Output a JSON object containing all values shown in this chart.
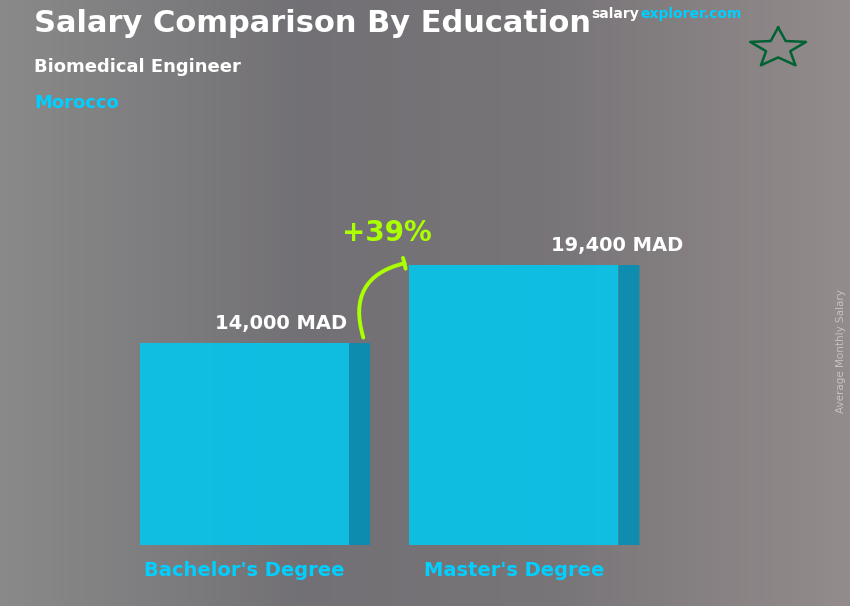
{
  "title": "Salary Comparison By Education",
  "subtitle": "Biomedical Engineer",
  "country": "Morocco",
  "site_salary": "salary",
  "site_explorer": "explorer.com",
  "categories": [
    "Bachelor's Degree",
    "Master's Degree"
  ],
  "values": [
    14000,
    19400
  ],
  "value_labels": [
    "14,000 MAD",
    "19,400 MAD"
  ],
  "pct_change": "+39%",
  "bar_color_main": "#00c8f0",
  "bar_color_light": "#40dfff",
  "bar_color_dark": "#0090b8",
  "bar_color_top": "#00e5ff",
  "title_color": "#ffffff",
  "subtitle_color": "#ffffff",
  "country_color": "#00cfff",
  "site_color_salary": "#ffffff",
  "site_color_explorer": "#00cfff",
  "value_label_color": "#ffffff",
  "category_label_color": "#00cfff",
  "pct_color": "#aaff00",
  "arc_color": "#aaff00",
  "fig_width": 8.5,
  "fig_height": 6.06,
  "ylim": [
    0,
    26000
  ],
  "ylabel_text": "Average Monthly Salary",
  "bar_width": 0.28,
  "bar_depth": 0.04,
  "x_positions": [
    0.27,
    0.63
  ]
}
